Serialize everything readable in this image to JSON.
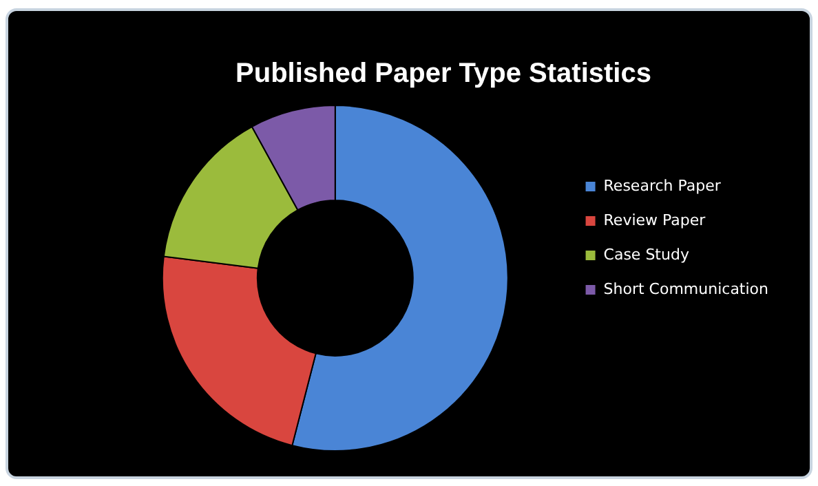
{
  "chart_data": {
    "type": "donut",
    "title": "Published Paper Type Statistics",
    "categories": [
      "Research Paper",
      "Review Paper",
      "Case Study",
      "Short Communication"
    ],
    "values": [
      54,
      23,
      15,
      8
    ],
    "colors": [
      "#4a85d6",
      "#d9463f",
      "#9bbb3c",
      "#7c5aa8"
    ],
    "legend": "right"
  }
}
